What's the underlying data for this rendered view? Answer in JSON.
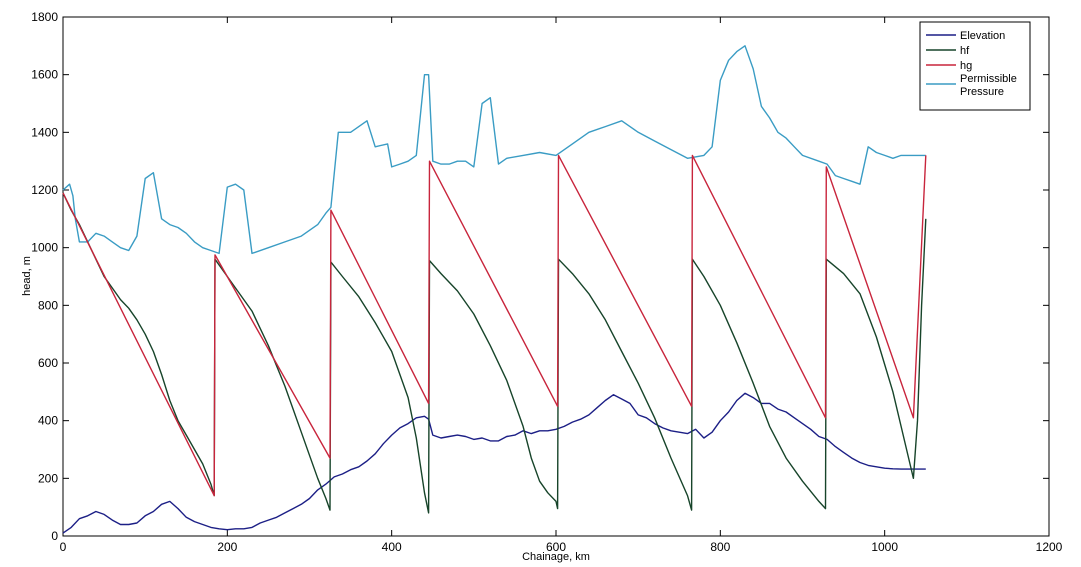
{
  "chart_data": {
    "type": "line",
    "xlabel": "Chainage, km",
    "ylabel": "head, m",
    "xlim": [
      0,
      1200
    ],
    "ylim": [
      0,
      1800
    ],
    "xticks": [
      0,
      200,
      400,
      600,
      800,
      1000,
      1200
    ],
    "yticks": [
      0,
      200,
      400,
      600,
      800,
      1000,
      1200,
      1400,
      1600,
      1800
    ],
    "grid": false,
    "legend_position": "top-right",
    "series": [
      {
        "name": "Elevation",
        "color": "#1c1f86",
        "points": [
          [
            0,
            10
          ],
          [
            10,
            30
          ],
          [
            20,
            60
          ],
          [
            30,
            70
          ],
          [
            40,
            85
          ],
          [
            50,
            75
          ],
          [
            60,
            55
          ],
          [
            70,
            40
          ],
          [
            80,
            40
          ],
          [
            90,
            45
          ],
          [
            100,
            70
          ],
          [
            110,
            85
          ],
          [
            120,
            110
          ],
          [
            130,
            120
          ],
          [
            140,
            95
          ],
          [
            150,
            65
          ],
          [
            160,
            50
          ],
          [
            170,
            40
          ],
          [
            180,
            30
          ],
          [
            190,
            25
          ],
          [
            200,
            22
          ],
          [
            210,
            25
          ],
          [
            220,
            25
          ],
          [
            230,
            30
          ],
          [
            240,
            45
          ],
          [
            250,
            55
          ],
          [
            260,
            65
          ],
          [
            270,
            80
          ],
          [
            280,
            95
          ],
          [
            290,
            110
          ],
          [
            300,
            130
          ],
          [
            310,
            160
          ],
          [
            320,
            180
          ],
          [
            330,
            205
          ],
          [
            340,
            215
          ],
          [
            350,
            230
          ],
          [
            360,
            240
          ],
          [
            370,
            260
          ],
          [
            380,
            285
          ],
          [
            390,
            320
          ],
          [
            400,
            350
          ],
          [
            410,
            375
          ],
          [
            420,
            390
          ],
          [
            430,
            410
          ],
          [
            440,
            415
          ],
          [
            445,
            405
          ],
          [
            450,
            350
          ],
          [
            460,
            340
          ],
          [
            470,
            345
          ],
          [
            480,
            350
          ],
          [
            490,
            345
          ],
          [
            500,
            335
          ],
          [
            510,
            340
          ],
          [
            520,
            330
          ],
          [
            530,
            330
          ],
          [
            540,
            345
          ],
          [
            550,
            350
          ],
          [
            560,
            365
          ],
          [
            570,
            355
          ],
          [
            580,
            365
          ],
          [
            590,
            365
          ],
          [
            600,
            370
          ],
          [
            610,
            380
          ],
          [
            620,
            395
          ],
          [
            630,
            405
          ],
          [
            640,
            420
          ],
          [
            650,
            445
          ],
          [
            660,
            470
          ],
          [
            670,
            490
          ],
          [
            680,
            475
          ],
          [
            690,
            460
          ],
          [
            700,
            420
          ],
          [
            710,
            410
          ],
          [
            720,
            390
          ],
          [
            730,
            375
          ],
          [
            740,
            365
          ],
          [
            750,
            360
          ],
          [
            760,
            355
          ],
          [
            770,
            370
          ],
          [
            780,
            340
          ],
          [
            790,
            360
          ],
          [
            800,
            400
          ],
          [
            810,
            430
          ],
          [
            820,
            470
          ],
          [
            830,
            495
          ],
          [
            840,
            480
          ],
          [
            850,
            460
          ],
          [
            860,
            460
          ],
          [
            870,
            440
          ],
          [
            880,
            430
          ],
          [
            890,
            410
          ],
          [
            900,
            390
          ],
          [
            910,
            370
          ],
          [
            920,
            345
          ],
          [
            930,
            335
          ],
          [
            940,
            310
          ],
          [
            950,
            290
          ],
          [
            960,
            270
          ],
          [
            970,
            255
          ],
          [
            980,
            245
          ],
          [
            990,
            240
          ],
          [
            1000,
            235
          ],
          [
            1010,
            233
          ],
          [
            1020,
            232
          ],
          [
            1030,
            232
          ],
          [
            1040,
            232
          ],
          [
            1050,
            232
          ]
        ]
      },
      {
        "name": "hf",
        "color": "#17442a",
        "points": [
          [
            0,
            1190
          ],
          [
            10,
            1130
          ],
          [
            20,
            1080
          ],
          [
            30,
            1020
          ],
          [
            40,
            960
          ],
          [
            50,
            900
          ],
          [
            60,
            860
          ],
          [
            70,
            820
          ],
          [
            80,
            790
          ],
          [
            90,
            750
          ],
          [
            100,
            700
          ],
          [
            110,
            640
          ],
          [
            120,
            560
          ],
          [
            130,
            470
          ],
          [
            140,
            400
          ],
          [
            150,
            350
          ],
          [
            160,
            300
          ],
          [
            170,
            250
          ],
          [
            180,
            180
          ],
          [
            184,
            140
          ],
          [
            185,
            960
          ],
          [
            190,
            940
          ],
          [
            200,
            900
          ],
          [
            210,
            860
          ],
          [
            220,
            820
          ],
          [
            230,
            780
          ],
          [
            240,
            720
          ],
          [
            250,
            660
          ],
          [
            260,
            590
          ],
          [
            270,
            520
          ],
          [
            280,
            440
          ],
          [
            290,
            360
          ],
          [
            300,
            280
          ],
          [
            310,
            200
          ],
          [
            320,
            130
          ],
          [
            325,
            90
          ],
          [
            326,
            950
          ],
          [
            340,
            900
          ],
          [
            360,
            830
          ],
          [
            380,
            740
          ],
          [
            400,
            640
          ],
          [
            420,
            480
          ],
          [
            430,
            340
          ],
          [
            440,
            150
          ],
          [
            445,
            80
          ],
          [
            446,
            955
          ],
          [
            460,
            910
          ],
          [
            480,
            850
          ],
          [
            500,
            770
          ],
          [
            520,
            660
          ],
          [
            540,
            540
          ],
          [
            560,
            380
          ],
          [
            570,
            270
          ],
          [
            580,
            190
          ],
          [
            590,
            150
          ],
          [
            600,
            120
          ],
          [
            602,
            95
          ],
          [
            603,
            960
          ],
          [
            620,
            910
          ],
          [
            640,
            840
          ],
          [
            660,
            750
          ],
          [
            680,
            640
          ],
          [
            700,
            530
          ],
          [
            720,
            410
          ],
          [
            740,
            270
          ],
          [
            760,
            140
          ],
          [
            765,
            90
          ],
          [
            766,
            960
          ],
          [
            780,
            900
          ],
          [
            800,
            800
          ],
          [
            820,
            670
          ],
          [
            840,
            530
          ],
          [
            860,
            380
          ],
          [
            880,
            270
          ],
          [
            900,
            190
          ],
          [
            920,
            120
          ],
          [
            928,
            95
          ],
          [
            929,
            960
          ],
          [
            950,
            910
          ],
          [
            970,
            840
          ],
          [
            990,
            690
          ],
          [
            1010,
            500
          ],
          [
            1020,
            380
          ],
          [
            1030,
            260
          ],
          [
            1035,
            200
          ],
          [
            1040,
            400
          ],
          [
            1045,
            800
          ],
          [
            1050,
            1100
          ]
        ]
      },
      {
        "name": "hg",
        "color": "#c8253c",
        "points": [
          [
            0,
            1190
          ],
          [
            184,
            140
          ],
          [
            185,
            975
          ],
          [
            325,
            270
          ],
          [
            326,
            1130
          ],
          [
            445,
            460
          ],
          [
            446,
            1300
          ],
          [
            602,
            450
          ],
          [
            603,
            1320
          ],
          [
            765,
            450
          ],
          [
            766,
            1320
          ],
          [
            928,
            410
          ],
          [
            929,
            1280
          ],
          [
            1035,
            410
          ],
          [
            1050,
            1320
          ]
        ]
      },
      {
        "name": "Permissible Pressure",
        "color": "#3a9cc4",
        "points": [
          [
            0,
            1200
          ],
          [
            8,
            1220
          ],
          [
            12,
            1180
          ],
          [
            15,
            1100
          ],
          [
            20,
            1020
          ],
          [
            30,
            1020
          ],
          [
            40,
            1050
          ],
          [
            50,
            1040
          ],
          [
            60,
            1020
          ],
          [
            70,
            1000
          ],
          [
            80,
            990
          ],
          [
            90,
            1040
          ],
          [
            100,
            1240
          ],
          [
            110,
            1260
          ],
          [
            120,
            1100
          ],
          [
            130,
            1080
          ],
          [
            140,
            1070
          ],
          [
            150,
            1050
          ],
          [
            160,
            1020
          ],
          [
            170,
            1000
          ],
          [
            180,
            990
          ],
          [
            190,
            980
          ],
          [
            200,
            1210
          ],
          [
            210,
            1220
          ],
          [
            220,
            1200
          ],
          [
            230,
            980
          ],
          [
            250,
            1000
          ],
          [
            270,
            1020
          ],
          [
            290,
            1040
          ],
          [
            310,
            1080
          ],
          [
            320,
            1120
          ],
          [
            326,
            1140
          ],
          [
            335,
            1400
          ],
          [
            350,
            1400
          ],
          [
            360,
            1420
          ],
          [
            370,
            1440
          ],
          [
            380,
            1350
          ],
          [
            395,
            1360
          ],
          [
            400,
            1280
          ],
          [
            410,
            1290
          ],
          [
            420,
            1300
          ],
          [
            430,
            1320
          ],
          [
            440,
            1600
          ],
          [
            445,
            1600
          ],
          [
            450,
            1300
          ],
          [
            460,
            1290
          ],
          [
            470,
            1290
          ],
          [
            480,
            1300
          ],
          [
            490,
            1300
          ],
          [
            500,
            1280
          ],
          [
            510,
            1500
          ],
          [
            520,
            1520
          ],
          [
            530,
            1290
          ],
          [
            540,
            1310
          ],
          [
            560,
            1320
          ],
          [
            580,
            1330
          ],
          [
            600,
            1320
          ],
          [
            620,
            1360
          ],
          [
            640,
            1400
          ],
          [
            660,
            1420
          ],
          [
            680,
            1440
          ],
          [
            700,
            1400
          ],
          [
            720,
            1370
          ],
          [
            740,
            1340
          ],
          [
            760,
            1310
          ],
          [
            780,
            1320
          ],
          [
            790,
            1350
          ],
          [
            800,
            1580
          ],
          [
            810,
            1650
          ],
          [
            820,
            1680
          ],
          [
            830,
            1700
          ],
          [
            840,
            1620
          ],
          [
            850,
            1490
          ],
          [
            860,
            1450
          ],
          [
            870,
            1400
          ],
          [
            880,
            1380
          ],
          [
            890,
            1350
          ],
          [
            900,
            1320
          ],
          [
            920,
            1300
          ],
          [
            930,
            1290
          ],
          [
            940,
            1250
          ],
          [
            950,
            1240
          ],
          [
            960,
            1230
          ],
          [
            970,
            1220
          ],
          [
            980,
            1350
          ],
          [
            990,
            1330
          ],
          [
            1000,
            1320
          ],
          [
            1010,
            1310
          ],
          [
            1020,
            1320
          ],
          [
            1030,
            1320
          ],
          [
            1040,
            1320
          ],
          [
            1050,
            1320
          ]
        ]
      }
    ]
  }
}
